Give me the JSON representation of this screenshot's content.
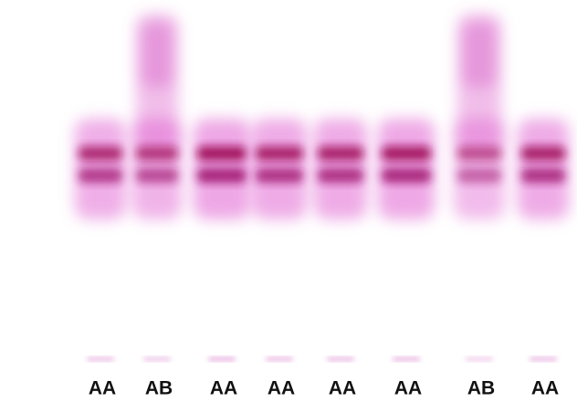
{
  "lane_labels": [
    "AA",
    "AB",
    "AA",
    "AA",
    "AA",
    "AA",
    "AB",
    "AA"
  ]
}
